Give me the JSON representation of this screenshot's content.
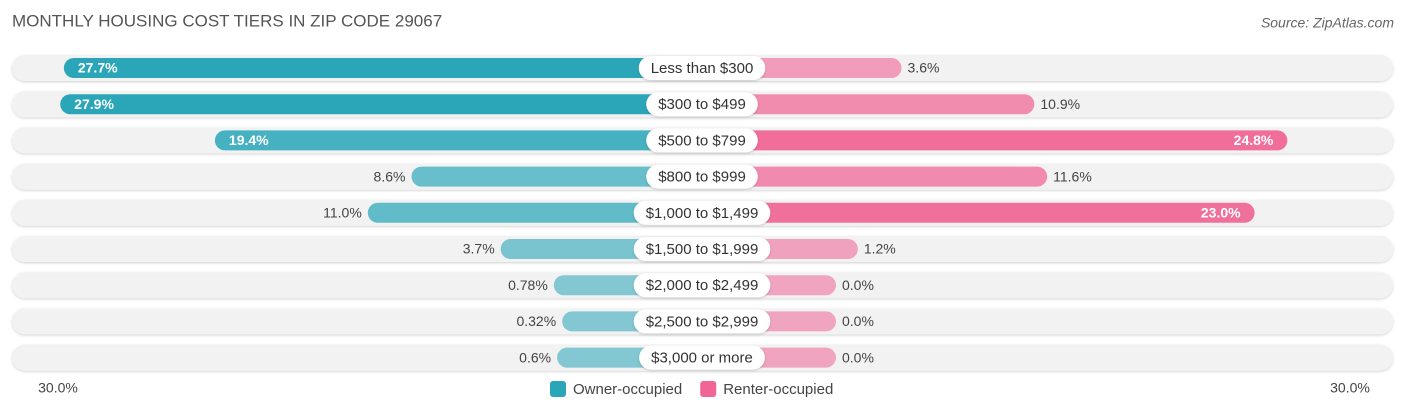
{
  "chart_data": {
    "type": "diverging-bar",
    "title": "MONTHLY HOUSING COST TIERS IN ZIP CODE 29067",
    "source": "Source: ZipAtlas.com",
    "categories": [
      "Less than $300",
      "$300 to $499",
      "$500 to $799",
      "$800 to $999",
      "$1,000 to $1,499",
      "$1,500 to $1,999",
      "$2,000 to $2,499",
      "$2,500 to $2,999",
      "$3,000 or more"
    ],
    "series": [
      {
        "name": "Owner-occupied",
        "color": "#2aa6b8",
        "values": [
          27.7,
          27.9,
          19.4,
          8.6,
          11.0,
          3.7,
          0.78,
          0.32,
          0.6
        ],
        "value_labels": [
          "27.7%",
          "27.9%",
          "19.4%",
          "8.6%",
          "11.0%",
          "3.7%",
          "0.78%",
          "0.32%",
          "0.6%"
        ]
      },
      {
        "name": "Renter-occupied",
        "color": "#f06595",
        "values": [
          3.6,
          10.9,
          24.8,
          11.6,
          23.0,
          1.2,
          0.0,
          0.0,
          0.0
        ],
        "value_labels": [
          "3.6%",
          "10.9%",
          "24.8%",
          "11.6%",
          "23.0%",
          "1.2%",
          "0.0%",
          "0.0%",
          "0.0%"
        ]
      }
    ],
    "xticks": [
      {
        "value": 30,
        "label": "30.0%"
      },
      {
        "value": 30,
        "label": "30.0%"
      }
    ]
  }
}
